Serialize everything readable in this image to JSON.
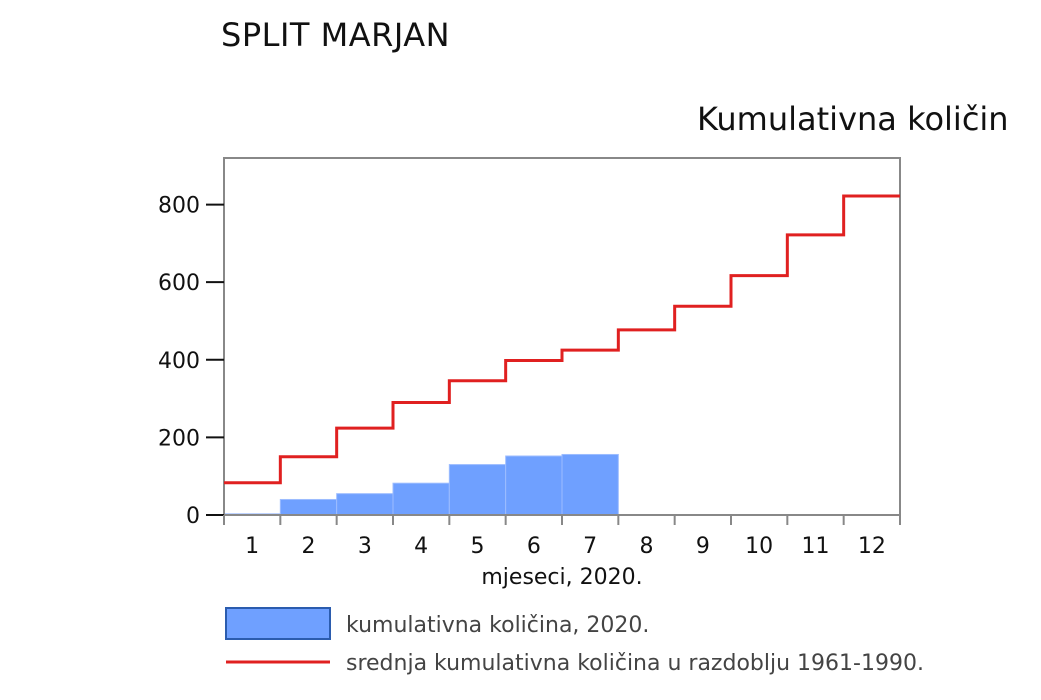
{
  "station_title": "SPLIT MARJAN",
  "chart_data": {
    "type": "bar",
    "title": "Kumulativna količin",
    "xlabel": "mjeseci, 2020.",
    "ylabel": "",
    "categories": [
      "1",
      "2",
      "3",
      "4",
      "5",
      "6",
      "7",
      "8",
      "9",
      "10",
      "11",
      "12"
    ],
    "ylim": [
      0,
      920
    ],
    "yticks": [
      0,
      200,
      400,
      600,
      800
    ],
    "grid": false,
    "legend_position": "bottom",
    "series": [
      {
        "name": "kumulativna količina, 2020.",
        "kind": "bar",
        "color": "#6fa0ff",
        "values": [
          3,
          40,
          55,
          82,
          130,
          152,
          156,
          null,
          null,
          null,
          null,
          null
        ]
      },
      {
        "name": "srednja kumulativna količina u razdoblju 1961-1990.",
        "kind": "step",
        "color": "#e02020",
        "values": [
          83,
          150,
          224,
          290,
          346,
          398,
          425,
          477,
          538,
          617,
          722,
          822
        ]
      }
    ]
  }
}
